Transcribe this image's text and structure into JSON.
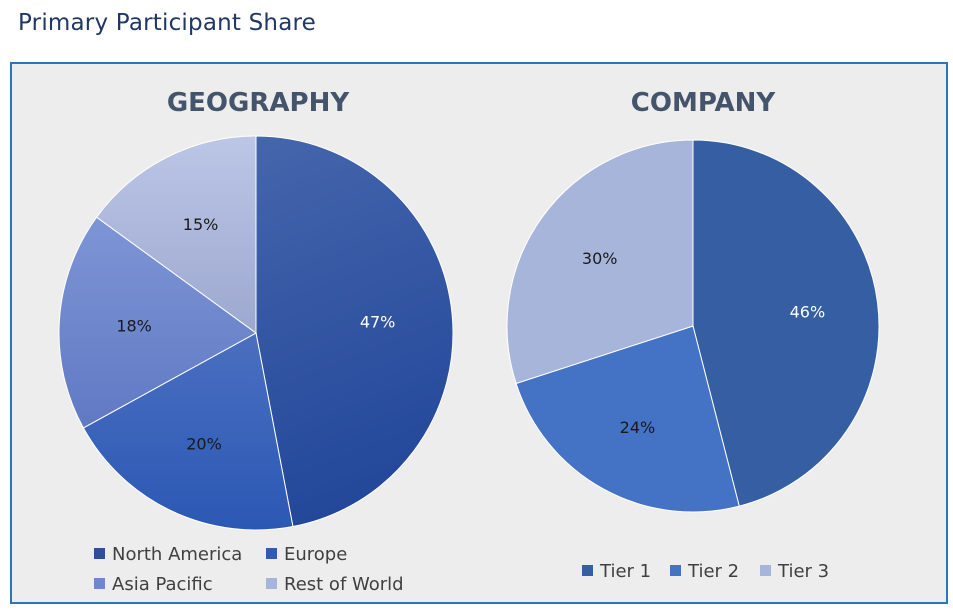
{
  "page_title": "Primary Participant Share",
  "colors": {
    "frame_border": "#2f75b5",
    "frame_bg": "#ededed",
    "title": "#1f3864"
  },
  "chart_data": [
    {
      "type": "pie",
      "title": "GEOGRAPHY",
      "categories": [
        "North America",
        "Europe",
        "Asia Pacific",
        "Rest of World"
      ],
      "values": [
        47,
        20,
        18,
        15
      ],
      "labels": [
        "47%",
        "20%",
        "18%",
        "15%"
      ],
      "colors": [
        "#2e4f9a",
        "#2f5cb2",
        "#6f87cc",
        "#a8b5db"
      ],
      "label_colors": [
        "#ffffff",
        "#1a1a1a",
        "#1a1a1a",
        "#1a1a1a"
      ],
      "legend_placement": "bottom",
      "start_angle_deg": 0,
      "direction": "clockwise"
    },
    {
      "type": "pie",
      "title": "COMPANY",
      "categories": [
        "Tier 1",
        "Tier 2",
        "Tier 3"
      ],
      "values": [
        46,
        24,
        30
      ],
      "labels": [
        "46%",
        "24%",
        "30%"
      ],
      "colors": [
        "#355ea3",
        "#4472c4",
        "#a8b5db"
      ],
      "label_colors": [
        "#ffffff",
        "#1a1a1a",
        "#1a1a1a"
      ],
      "legend_placement": "bottom",
      "start_angle_deg": 0,
      "direction": "clockwise"
    }
  ]
}
